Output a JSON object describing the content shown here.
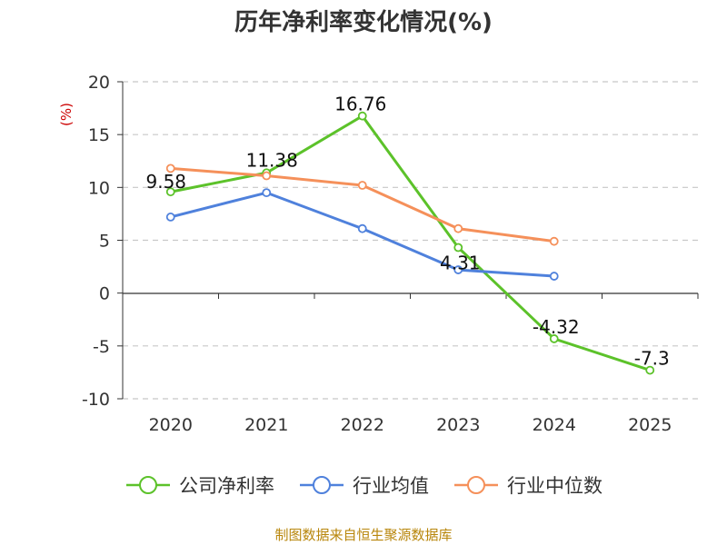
{
  "chart_data": {
    "type": "line",
    "title": "历年净利率变化情况(%)",
    "ylabel": "(%)",
    "xlabel": "",
    "categories": [
      "2020",
      "2021",
      "2022",
      "2023",
      "2024",
      "2025"
    ],
    "ylim": [
      -10,
      20
    ],
    "yticks": [
      20,
      15,
      10,
      5,
      0,
      -5,
      -10
    ],
    "grid": true,
    "legend_position": "bottom",
    "series": [
      {
        "name": "公司净利率",
        "color": "#5cc22a",
        "values": [
          9.58,
          11.38,
          16.76,
          4.31,
          -4.32,
          -7.3
        ],
        "labels": [
          "9.58",
          "11.38",
          "16.76",
          "4.31",
          "-4.32",
          "-7.3"
        ]
      },
      {
        "name": "行业均值",
        "color": "#4f81dc",
        "values": [
          7.2,
          9.5,
          6.1,
          2.2,
          1.6,
          null
        ],
        "labels": []
      },
      {
        "name": "行业中位数",
        "color": "#f5905a",
        "values": [
          11.8,
          11.1,
          10.2,
          6.1,
          4.9,
          null
        ],
        "labels": []
      }
    ]
  },
  "source": "制图数据来自恒生聚源数据库"
}
